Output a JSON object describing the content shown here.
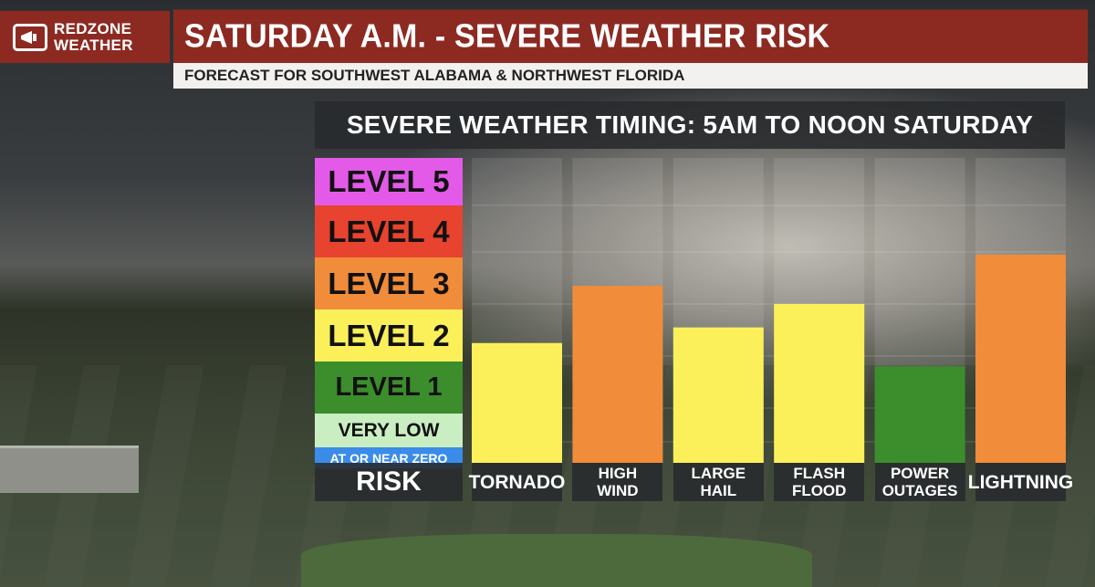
{
  "header": {
    "brand_line1": "REDZONE",
    "brand_line2": "WEATHER",
    "title": "SATURDAY A.M. - SEVERE WEATHER RISK",
    "subtitle": "FORECAST FOR SOUTHWEST ALABAMA & NORTHWEST FLORIDA"
  },
  "chart_data": {
    "type": "bar",
    "title": "SEVERE WEATHER TIMING: 5AM TO NOON SATURDAY",
    "xlabel": "RISK",
    "ylabel": "",
    "categories": [
      "TORNADO",
      "HIGH WIND",
      "LARGE HAIL",
      "FLASH FLOOD",
      "POWER OUTAGES",
      "LIGHTNING"
    ],
    "category_lines": [
      [
        "TORNADO"
      ],
      [
        "HIGH",
        "WIND"
      ],
      [
        "LARGE",
        "HAIL"
      ],
      [
        "FLASH",
        "FLOOD"
      ],
      [
        "POWER",
        "OUTAGES"
      ],
      [
        "LIGHTNING"
      ]
    ],
    "values": [
      2.25,
      3.35,
      2.55,
      3.0,
      1.8,
      3.95
    ],
    "bar_colors": [
      "#fbf05a",
      "#f08c3a",
      "#fbf05a",
      "#fbf05a",
      "#3c8d2c",
      "#f08c3a"
    ],
    "ylim": [
      -0.8,
      5
    ],
    "levels": [
      {
        "label": "LEVEL 5",
        "color": "#e35ae8",
        "value": 5
      },
      {
        "label": "LEVEL 4",
        "color": "#e8432e",
        "value": 4
      },
      {
        "label": "LEVEL 3",
        "color": "#f08c3a",
        "value": 3
      },
      {
        "label": "LEVEL 2",
        "color": "#fbf05a",
        "value": 2
      },
      {
        "label": "LEVEL 1",
        "color": "#3c8d2c",
        "value": 1
      },
      {
        "label": "VERY LOW",
        "color": "#c9eec2",
        "value": 0
      },
      {
        "label": "AT OR NEAR ZERO",
        "color": "#3b8ce8",
        "value": -0.5
      }
    ],
    "grid": true
  }
}
